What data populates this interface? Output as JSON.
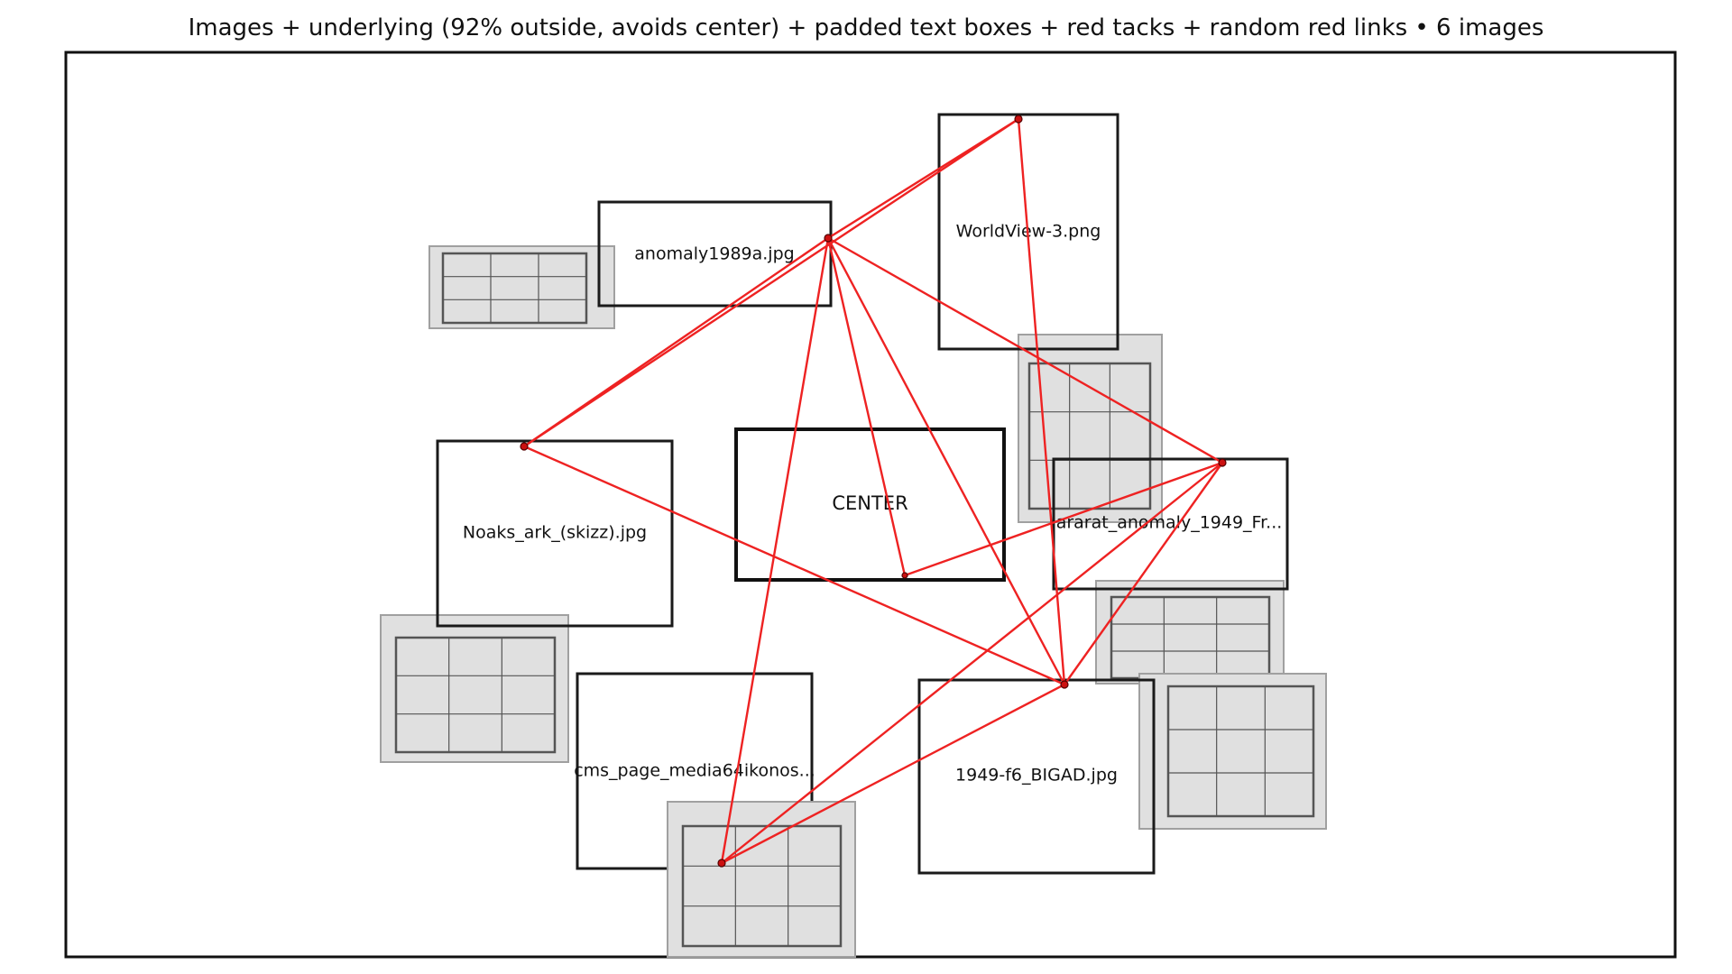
{
  "title": "Images + underlying (92% outside, avoids center) + padded text boxes + red tacks + random red links • 6 images",
  "colors": {
    "frame": "#111111",
    "box_stroke": "#1a1a1a",
    "thumb_fill": "#e0e0e0",
    "thumb_outer_stroke": "#a0a0a0",
    "thumb_inner_stroke": "#555555",
    "link": "#ee2222",
    "tack_fill": "#cc1111",
    "tack_stroke": "#550000",
    "text": "#111111"
  },
  "center_box": {
    "label": "CENTER"
  },
  "image_boxes": [
    {
      "id": "anomaly1989a",
      "label": "anomaly1989a.jpg"
    },
    {
      "id": "worldview3",
      "label": "WorldView-3.png"
    },
    {
      "id": "noaks-ark",
      "label": "Noaks_ark_(skizz).jpg"
    },
    {
      "id": "ararat-anomaly",
      "label": "ararat_anomaly_1949_Fr..."
    },
    {
      "id": "cms-page-media",
      "label": "cms_page_media64ikonos..."
    },
    {
      "id": "bigad",
      "label": "1949-f6_BIGAD.jpg"
    }
  ],
  "thumbnails": [
    {
      "id": "thumb-1",
      "icon": "image-placeholder-icon"
    },
    {
      "id": "thumb-2",
      "icon": "image-placeholder-icon"
    },
    {
      "id": "thumb-3",
      "icon": "image-placeholder-icon"
    },
    {
      "id": "thumb-4",
      "icon": "image-placeholder-icon"
    },
    {
      "id": "thumb-5",
      "icon": "image-placeholder-icon"
    },
    {
      "id": "thumb-6",
      "icon": "image-placeholder-icon"
    }
  ],
  "tacks": [
    "anomaly1989a",
    "worldview3",
    "noaks-ark",
    "ararat-anomaly",
    "center",
    "bigad",
    "cms-page-media"
  ],
  "links": [
    [
      "anomaly1989a",
      "worldview3"
    ],
    [
      "anomaly1989a",
      "noaks-ark"
    ],
    [
      "anomaly1989a",
      "ararat-anomaly"
    ],
    [
      "anomaly1989a",
      "center"
    ],
    [
      "anomaly1989a",
      "bigad"
    ],
    [
      "anomaly1989a",
      "cms-page-media"
    ],
    [
      "worldview3",
      "noaks-ark"
    ],
    [
      "worldview3",
      "bigad"
    ],
    [
      "noaks-ark",
      "bigad"
    ],
    [
      "ararat-anomaly",
      "center"
    ],
    [
      "ararat-anomaly",
      "bigad"
    ],
    [
      "ararat-anomaly",
      "cms-page-media"
    ],
    [
      "bigad",
      "cms-page-media"
    ]
  ]
}
